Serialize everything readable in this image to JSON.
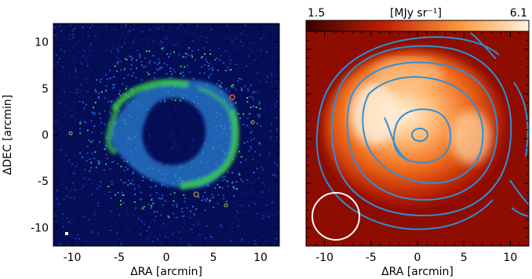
{
  "chart_data": [
    {
      "type": "image",
      "panel": "left",
      "xlabel": "ΔRA [arcmin]",
      "ylabel": "ΔDEC [arcmin]",
      "xlim": [
        -12,
        12
      ],
      "ylim": [
        -12,
        12
      ],
      "xticks": [
        -10,
        -5,
        0,
        5,
        10
      ],
      "yticks": [
        -10,
        -5,
        0,
        5,
        10
      ],
      "colormap": "blue-green",
      "background": "#050d55",
      "ring_color": "#3bcf46",
      "ring_center": [
        0,
        0.5
      ],
      "ring_radius_arcmin": [
        4,
        8
      ]
    },
    {
      "type": "image",
      "panel": "right",
      "xlabel": "ΔRA [arcmin]",
      "xlim": [
        -12,
        12
      ],
      "ylim": [
        -12,
        12
      ],
      "xticks": [
        -10,
        -5,
        0,
        5,
        10
      ],
      "colorbar": {
        "min_label": "1.5",
        "max_label": "6.1",
        "unit_label": "[MJy sr⁻¹]",
        "colormap": "heat",
        "colors": [
          "#5a0000",
          "#d62a00",
          "#ff9a3c",
          "#fff3e0"
        ]
      },
      "contour_color": "#2f8fd8",
      "beam_circle": {
        "center": [
          -8.5,
          -8.5
        ],
        "radius_arcmin": 2.3,
        "color": "#ffffff"
      }
    }
  ]
}
